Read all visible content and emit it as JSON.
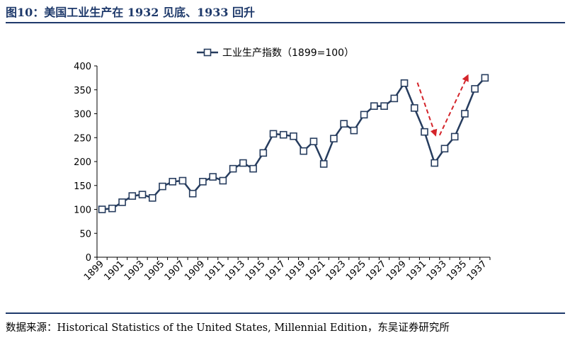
{
  "figure": {
    "title": "图10：美国工业生产在 1932 见底、1933 回升",
    "source": "数据来源：Historical Statistics of the United States, Millennial Edition，东吴证券研究所"
  },
  "colors": {
    "line": "#263c5e",
    "accent": "#1f3a6b",
    "arrow": "#d4242a",
    "marker_fill": "#ffffff"
  },
  "chart_data": {
    "type": "line",
    "title": "",
    "xlabel": "",
    "ylabel": "",
    "ylim": [
      0,
      400
    ],
    "yticks": [
      0,
      50,
      100,
      150,
      200,
      250,
      300,
      350,
      400
    ],
    "x_tick_labels": [
      "1899",
      "1901",
      "1903",
      "1905",
      "1907",
      "1909",
      "1911",
      "1913",
      "1915",
      "1917",
      "1919",
      "1921",
      "1923",
      "1925",
      "1927",
      "1929",
      "1931",
      "1933",
      "1935",
      "1937"
    ],
    "grid": false,
    "legend_position": "top-center",
    "x": [
      1899,
      1900,
      1901,
      1902,
      1903,
      1904,
      1905,
      1906,
      1907,
      1908,
      1909,
      1910,
      1911,
      1912,
      1913,
      1914,
      1915,
      1916,
      1917,
      1918,
      1919,
      1920,
      1921,
      1922,
      1923,
      1924,
      1925,
      1926,
      1927,
      1928,
      1929,
      1930,
      1931,
      1932,
      1933,
      1934,
      1935,
      1936,
      1937
    ],
    "series": [
      {
        "name": "工业生产指数（1899=100）",
        "marker": "square",
        "values": [
          100,
          102,
          115,
          128,
          131,
          124,
          148,
          158,
          160,
          133,
          158,
          168,
          160,
          185,
          197,
          185,
          218,
          258,
          256,
          253,
          222,
          242,
          195,
          248,
          279,
          265,
          298,
          316,
          316,
          332,
          364,
          312,
          262,
          197,
          227,
          252,
          300,
          352,
          375
        ]
      }
    ],
    "annotations": [
      {
        "type": "dashed-arrow",
        "direction": "down",
        "from": [
          1930.3,
          365
        ],
        "to": [
          1932.1,
          255
        ]
      },
      {
        "type": "dashed-arrow",
        "direction": "up",
        "from": [
          1932.5,
          255
        ],
        "to": [
          1935.3,
          380
        ]
      }
    ]
  }
}
